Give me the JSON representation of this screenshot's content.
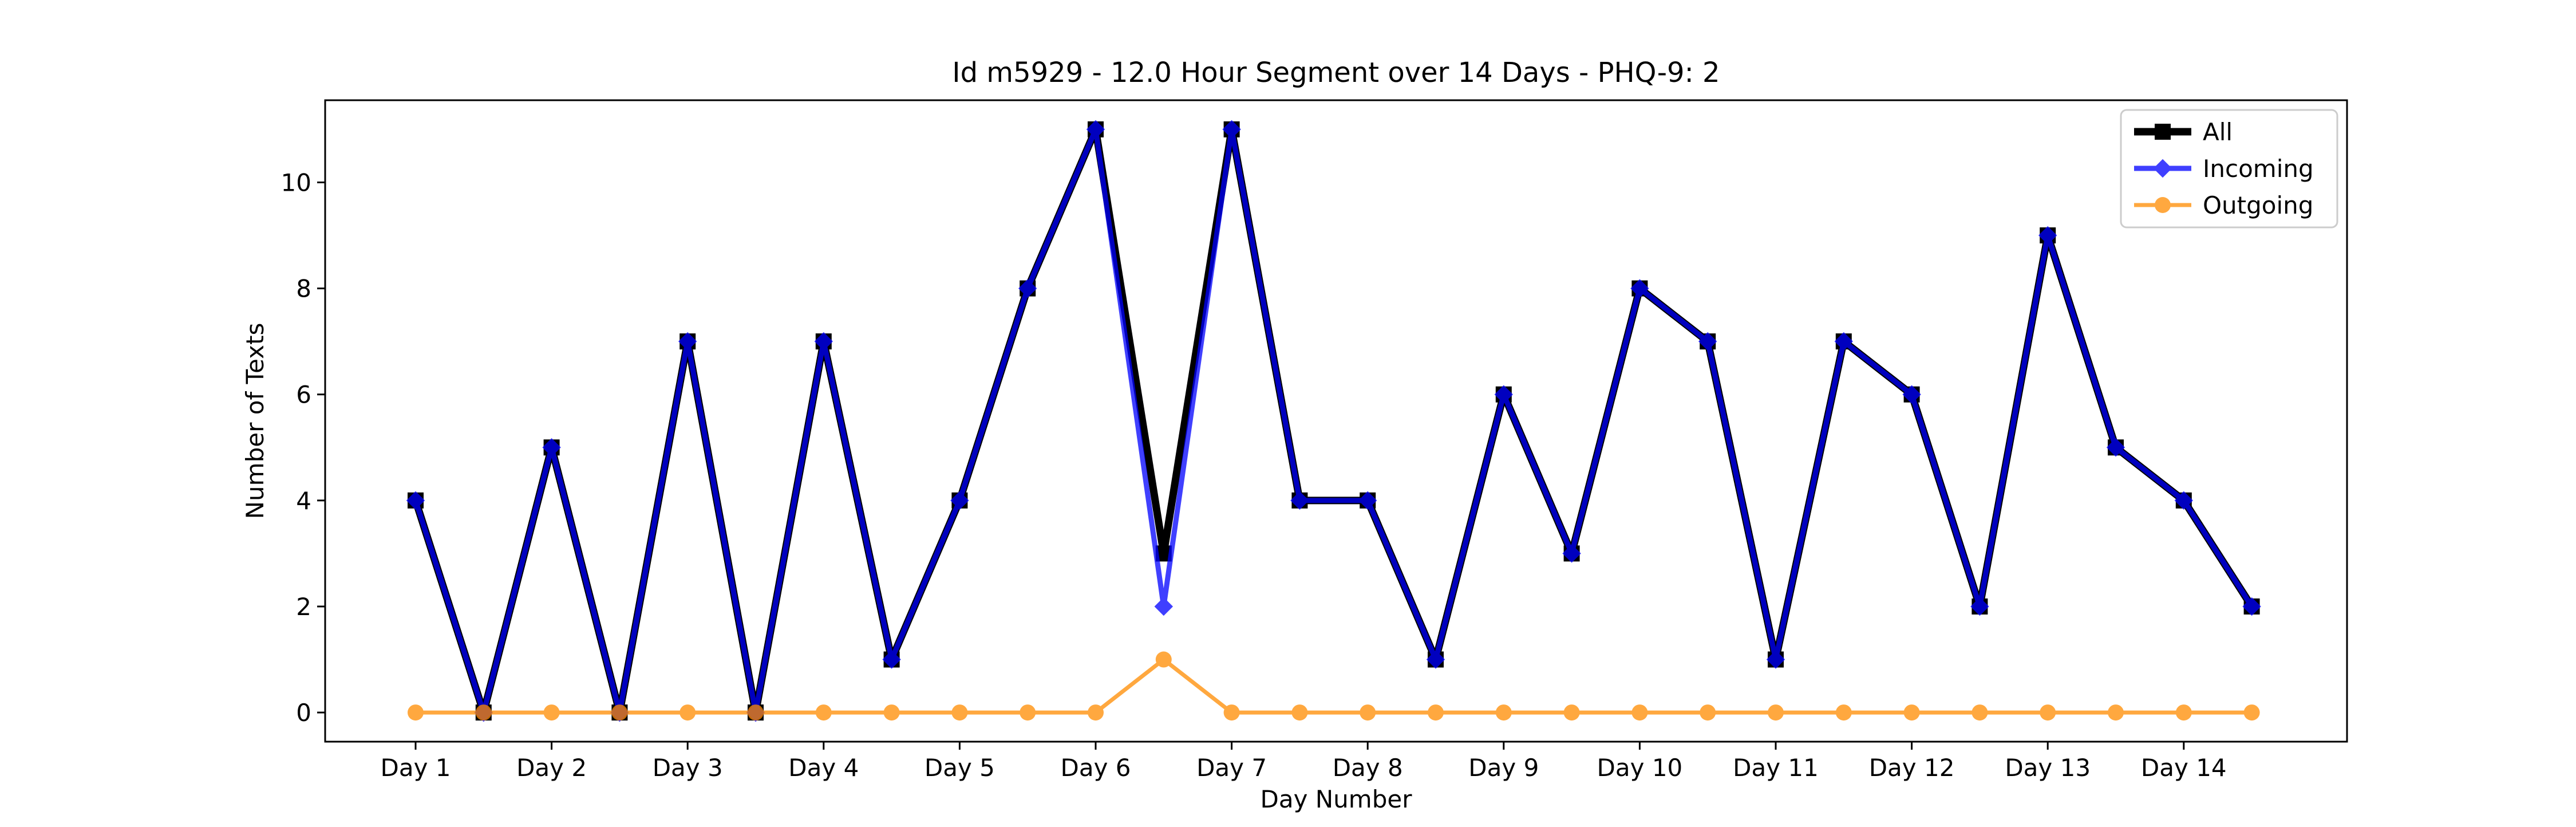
{
  "chart_data": {
    "type": "line",
    "title": "Id m5929 - 12.0 Hour Segment over 14 Days - PHQ-9: 2",
    "xlabel": "Day Number",
    "ylabel": "Number of Texts",
    "categories": [
      "Day 1",
      "",
      "Day 2",
      "",
      "Day 3",
      "",
      "Day 4",
      "",
      "Day 5",
      "",
      "Day 6",
      "",
      "Day 7",
      "",
      "Day 8",
      "",
      "Day 9",
      "",
      "Day 10",
      "",
      "Day 11",
      "",
      "Day 12",
      "",
      "Day 13",
      "",
      "Day 14",
      ""
    ],
    "x_tick_labels": [
      "Day 1",
      "Day 2",
      "Day 3",
      "Day 4",
      "Day 5",
      "Day 6",
      "Day 7",
      "Day 8",
      "Day 9",
      "Day 10",
      "Day 11",
      "Day 12",
      "Day 13",
      "Day 14"
    ],
    "y_ticks": [
      0,
      2,
      4,
      6,
      8,
      10
    ],
    "ylim": [
      -0.55,
      11.55
    ],
    "grid": false,
    "legend_position": "top-right",
    "series": [
      {
        "name": "All",
        "color": "#000000",
        "marker": "square",
        "values": [
          4,
          0,
          5,
          0,
          7,
          0,
          7,
          1,
          4,
          8,
          11,
          3,
          11,
          4,
          4,
          1,
          6,
          3,
          8,
          7,
          1,
          7,
          6,
          2,
          9,
          5,
          4,
          2
        ]
      },
      {
        "name": "Incoming",
        "color": "#0000ff",
        "marker": "diamond",
        "values": [
          4,
          0,
          5,
          0,
          7,
          0,
          7,
          1,
          4,
          8,
          11,
          2,
          11,
          4,
          4,
          1,
          6,
          3,
          8,
          7,
          1,
          7,
          6,
          2,
          9,
          5,
          4,
          2
        ]
      },
      {
        "name": "Outgoing",
        "color": "#ff8c00",
        "marker": "circle",
        "values": [
          0,
          0,
          0,
          0,
          0,
          0,
          0,
          0,
          0,
          0,
          0,
          1,
          0,
          0,
          0,
          0,
          0,
          0,
          0,
          0,
          0,
          0,
          0,
          0,
          0,
          0,
          0,
          0
        ]
      }
    ]
  }
}
